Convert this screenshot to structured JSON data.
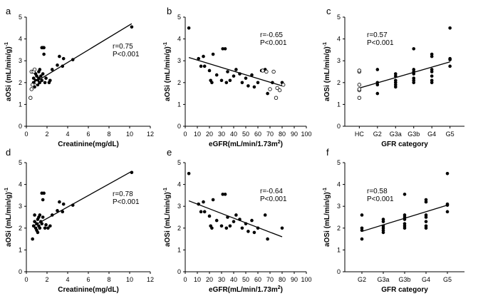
{
  "chart_data": [
    {
      "type": "scatter",
      "panel_label": "a",
      "xlabel": "Creatinine(mg/dL)",
      "ylabel": "aOSi (mL/min/g)",
      "ylabel_exp": "-1",
      "xlim": [
        0,
        12
      ],
      "ylim": [
        0,
        5
      ],
      "xticks": [
        0,
        2,
        4,
        6,
        8,
        10,
        12
      ],
      "yticks": [
        0,
        1,
        2,
        3,
        4,
        5
      ],
      "stat_r": "r=0.75",
      "stat_p": "P<0.001",
      "fit": [
        [
          0.6,
          1.95
        ],
        [
          10.2,
          4.7
        ]
      ],
      "series": [
        {
          "style": "filled",
          "points": [
            [
              0.6,
              2.5
            ],
            [
              0.7,
              2.0
            ],
            [
              0.7,
              2.2
            ],
            [
              0.8,
              1.8
            ],
            [
              0.8,
              2.6
            ],
            [
              0.9,
              2.1
            ],
            [
              0.9,
              2.4
            ],
            [
              1.0,
              2.0
            ],
            [
              1.0,
              2.3
            ],
            [
              1.1,
              1.9
            ],
            [
              1.1,
              2.1
            ],
            [
              1.2,
              2.5
            ],
            [
              1.2,
              2.2
            ],
            [
              1.3,
              2.6
            ],
            [
              1.3,
              2.0
            ],
            [
              1.4,
              2.3
            ],
            [
              1.5,
              2.1
            ],
            [
              1.5,
              3.6
            ],
            [
              1.6,
              2.4
            ],
            [
              1.6,
              3.6
            ],
            [
              1.7,
              3.3
            ],
            [
              1.7,
              3.6
            ],
            [
              1.8,
              2.0
            ],
            [
              1.9,
              2.2
            ],
            [
              2.2,
              2.0
            ],
            [
              2.3,
              2.1
            ],
            [
              2.5,
              2.6
            ],
            [
              3.0,
              2.8
            ],
            [
              3.2,
              3.2
            ],
            [
              3.5,
              2.75
            ],
            [
              3.6,
              3.1
            ],
            [
              4.5,
              3.05
            ],
            [
              10.2,
              4.55
            ]
          ]
        },
        {
          "style": "open",
          "points": [
            [
              0.4,
              1.3
            ],
            [
              0.5,
              1.7
            ],
            [
              0.5,
              2.5
            ],
            [
              0.6,
              1.9
            ],
            [
              0.7,
              2.5
            ],
            [
              0.8,
              2.6
            ],
            [
              1.0,
              2.0
            ]
          ]
        }
      ]
    },
    {
      "type": "scatter",
      "panel_label": "b",
      "xlabel": "eGFR(mL/min/1.73m",
      "xlabel_sup": "2",
      "xlabel_end": ")",
      "ylabel": "aOSi (mL/min/g)",
      "ylabel_exp": "-1",
      "xlim": [
        0,
        100
      ],
      "ylim": [
        0,
        5
      ],
      "xticks": [
        0,
        10,
        20,
        30,
        40,
        50,
        60,
        70,
        80,
        90,
        100
      ],
      "yticks": [
        0,
        1,
        2,
        3,
        4,
        5
      ],
      "stat_r": "r=-0.65",
      "stat_p": "P<0.001",
      "fit": [
        [
          3,
          3.15
        ],
        [
          80,
          1.85
        ]
      ],
      "series": [
        {
          "style": "filled",
          "points": [
            [
              3,
              4.5
            ],
            [
              11,
              3.1
            ],
            [
              13,
              2.75
            ],
            [
              15,
              3.2
            ],
            [
              16,
              2.75
            ],
            [
              20,
              2.55
            ],
            [
              21,
              2.1
            ],
            [
              22,
              2.0
            ],
            [
              23,
              3.3
            ],
            [
              26,
              2.35
            ],
            [
              30,
              2.1
            ],
            [
              31,
              3.55
            ],
            [
              33,
              3.55
            ],
            [
              34,
              2.0
            ],
            [
              35,
              2.5
            ],
            [
              37,
              2.1
            ],
            [
              40,
              2.3
            ],
            [
              42,
              2.6
            ],
            [
              45,
              2.4
            ],
            [
              47,
              2.0
            ],
            [
              50,
              2.2
            ],
            [
              52,
              1.85
            ],
            [
              55,
              2.35
            ],
            [
              57,
              1.8
            ],
            [
              60,
              2.0
            ],
            [
              63,
              2.55
            ],
            [
              66,
              2.6
            ],
            [
              68,
              1.5
            ],
            [
              72,
              2.0
            ],
            [
              80,
              2.0
            ]
          ]
        },
        {
          "style": "open",
          "points": [
            [
              64,
              2.55
            ],
            [
              67,
              2.5
            ],
            [
              70,
              1.7
            ],
            [
              73,
              2.5
            ],
            [
              75,
              1.3
            ],
            [
              76,
              1.75
            ],
            [
              78,
              1.65
            ],
            [
              81,
              1.9
            ]
          ]
        }
      ]
    },
    {
      "type": "scatter",
      "panel_label": "c",
      "xlabel": "GFR category",
      "ylabel": "aOSi (mL/min/g)",
      "ylabel_exp": "-1",
      "categories": [
        "HC",
        "G2",
        "G3a",
        "G3b",
        "G4",
        "G5"
      ],
      "ylim": [
        0,
        5
      ],
      "yticks": [
        0,
        1,
        2,
        3,
        4,
        5
      ],
      "stat_r": "r=0.57",
      "stat_p": "P<0.001",
      "fit": [
        [
          0,
          1.75
        ],
        [
          5,
          2.95
        ]
      ],
      "series": [
        {
          "style": "open",
          "points": [
            [
              0,
              1.3
            ],
            [
              0,
              1.65
            ],
            [
              0,
              1.7
            ],
            [
              0,
              1.9
            ],
            [
              0,
              2.5
            ],
            [
              0,
              2.55
            ]
          ]
        },
        {
          "style": "filled",
          "points": [
            [
              1,
              1.5
            ],
            [
              1,
              1.9
            ],
            [
              1,
              2.0
            ],
            [
              1,
              2.6
            ],
            [
              2,
              1.8
            ],
            [
              2,
              1.9
            ],
            [
              2,
              2.0
            ],
            [
              2,
              2.1
            ],
            [
              2,
              2.3
            ],
            [
              2,
              2.4
            ],
            [
              3,
              2.0
            ],
            [
              3,
              2.1
            ],
            [
              3,
              2.2
            ],
            [
              3,
              2.4
            ],
            [
              3,
              2.5
            ],
            [
              3,
              2.6
            ],
            [
              3,
              3.55
            ],
            [
              4,
              2.0
            ],
            [
              4,
              2.1
            ],
            [
              4,
              2.3
            ],
            [
              4,
              2.5
            ],
            [
              4,
              2.6
            ],
            [
              4,
              3.2
            ],
            [
              4,
              3.3
            ],
            [
              5,
              2.75
            ],
            [
              5,
              3.05
            ],
            [
              5,
              3.1
            ],
            [
              5,
              4.5
            ]
          ]
        }
      ]
    },
    {
      "type": "scatter",
      "panel_label": "d",
      "xlabel": "Creatinine(mg/dL)",
      "ylabel": "aOSi (mL/min/g)",
      "ylabel_exp": "-1",
      "xlim": [
        0,
        12
      ],
      "ylim": [
        0,
        5
      ],
      "xticks": [
        0,
        2,
        4,
        6,
        8,
        10,
        12
      ],
      "yticks": [
        0,
        1,
        2,
        3,
        4,
        5
      ],
      "stat_r": "r=0.78",
      "stat_p": "P<0.001",
      "fit": [
        [
          0.7,
          2.1
        ],
        [
          10.2,
          4.6
        ]
      ],
      "series": [
        {
          "style": "filled",
          "points": [
            [
              0.6,
              1.5
            ],
            [
              0.7,
              2.1
            ],
            [
              0.8,
              2.3
            ],
            [
              0.8,
              2.6
            ],
            [
              0.9,
              2.0
            ],
            [
              1.0,
              1.9
            ],
            [
              1.0,
              2.2
            ],
            [
              1.1,
              1.8
            ],
            [
              1.1,
              2.4
            ],
            [
              1.2,
              2.5
            ],
            [
              1.2,
              2.1
            ],
            [
              1.3,
              2.6
            ],
            [
              1.3,
              2.0
            ],
            [
              1.4,
              2.3
            ],
            [
              1.5,
              3.6
            ],
            [
              1.5,
              2.2
            ],
            [
              1.6,
              2.5
            ],
            [
              1.6,
              3.3
            ],
            [
              1.7,
              3.6
            ],
            [
              1.8,
              2.0
            ],
            [
              1.9,
              2.15
            ],
            [
              2.1,
              2.0
            ],
            [
              2.3,
              2.1
            ],
            [
              2.5,
              2.6
            ],
            [
              3.0,
              2.8
            ],
            [
              3.2,
              3.2
            ],
            [
              3.5,
              2.75
            ],
            [
              3.6,
              3.1
            ],
            [
              4.5,
              3.05
            ],
            [
              10.2,
              4.55
            ]
          ]
        }
      ]
    },
    {
      "type": "scatter",
      "panel_label": "e",
      "xlabel": "eGFR(mL/min/1.73m",
      "xlabel_sup": "2",
      "xlabel_end": ")",
      "ylabel": "aOSi (mL/min/g)",
      "ylabel_exp": "-1",
      "xlim": [
        0,
        100
      ],
      "ylim": [
        0,
        5
      ],
      "xticks": [
        0,
        10,
        20,
        30,
        40,
        50,
        60,
        70,
        80,
        90,
        100
      ],
      "yticks": [
        0,
        1,
        2,
        3,
        4,
        5
      ],
      "stat_r": "r=-0.64",
      "stat_p": "P<0.001",
      "fit": [
        [
          3,
          3.25
        ],
        [
          80,
          1.6
        ]
      ],
      "series": [
        {
          "style": "filled",
          "points": [
            [
              3,
              4.5
            ],
            [
              11,
              3.1
            ],
            [
              13,
              2.75
            ],
            [
              15,
              3.2
            ],
            [
              16,
              2.75
            ],
            [
              20,
              2.55
            ],
            [
              21,
              2.1
            ],
            [
              22,
              2.0
            ],
            [
              23,
              3.3
            ],
            [
              26,
              2.35
            ],
            [
              30,
              2.1
            ],
            [
              31,
              3.55
            ],
            [
              33,
              3.55
            ],
            [
              34,
              2.0
            ],
            [
              35,
              2.5
            ],
            [
              37,
              2.1
            ],
            [
              40,
              2.3
            ],
            [
              42,
              2.6
            ],
            [
              45,
              2.4
            ],
            [
              47,
              2.0
            ],
            [
              50,
              2.2
            ],
            [
              52,
              1.85
            ],
            [
              55,
              2.35
            ],
            [
              57,
              1.8
            ],
            [
              60,
              2.0
            ],
            [
              66,
              2.6
            ],
            [
              68,
              1.5
            ],
            [
              80,
              2.0
            ]
          ]
        }
      ]
    },
    {
      "type": "scatter",
      "panel_label": "f",
      "xlabel": "GFR category",
      "ylabel": "aOSi (mL/min/g)",
      "ylabel_exp": "-1",
      "categories": [
        "G2",
        "G3a",
        "G3b",
        "G4",
        "G5"
      ],
      "ylim": [
        0,
        5
      ],
      "yticks": [
        0,
        1,
        2,
        3,
        4,
        5
      ],
      "stat_r": "r=0.58",
      "stat_p": "P<0.001",
      "fit": [
        [
          0,
          1.85
        ],
        [
          4,
          3.05
        ]
      ],
      "series": [
        {
          "style": "filled",
          "points": [
            [
              0,
              1.5
            ],
            [
              0,
              1.9
            ],
            [
              0,
              2.0
            ],
            [
              0,
              2.6
            ],
            [
              1,
              1.8
            ],
            [
              1,
              1.9
            ],
            [
              1,
              2.0
            ],
            [
              1,
              2.1
            ],
            [
              1,
              2.3
            ],
            [
              1,
              2.4
            ],
            [
              2,
              2.0
            ],
            [
              2,
              2.1
            ],
            [
              2,
              2.2
            ],
            [
              2,
              2.4
            ],
            [
              2,
              2.5
            ],
            [
              2,
              2.6
            ],
            [
              2,
              3.55
            ],
            [
              3,
              2.0
            ],
            [
              3,
              2.1
            ],
            [
              3,
              2.3
            ],
            [
              3,
              2.5
            ],
            [
              3,
              2.6
            ],
            [
              3,
              3.2
            ],
            [
              3,
              3.3
            ],
            [
              4,
              2.75
            ],
            [
              4,
              3.05
            ],
            [
              4,
              3.1
            ],
            [
              4,
              4.5
            ]
          ]
        }
      ]
    }
  ]
}
